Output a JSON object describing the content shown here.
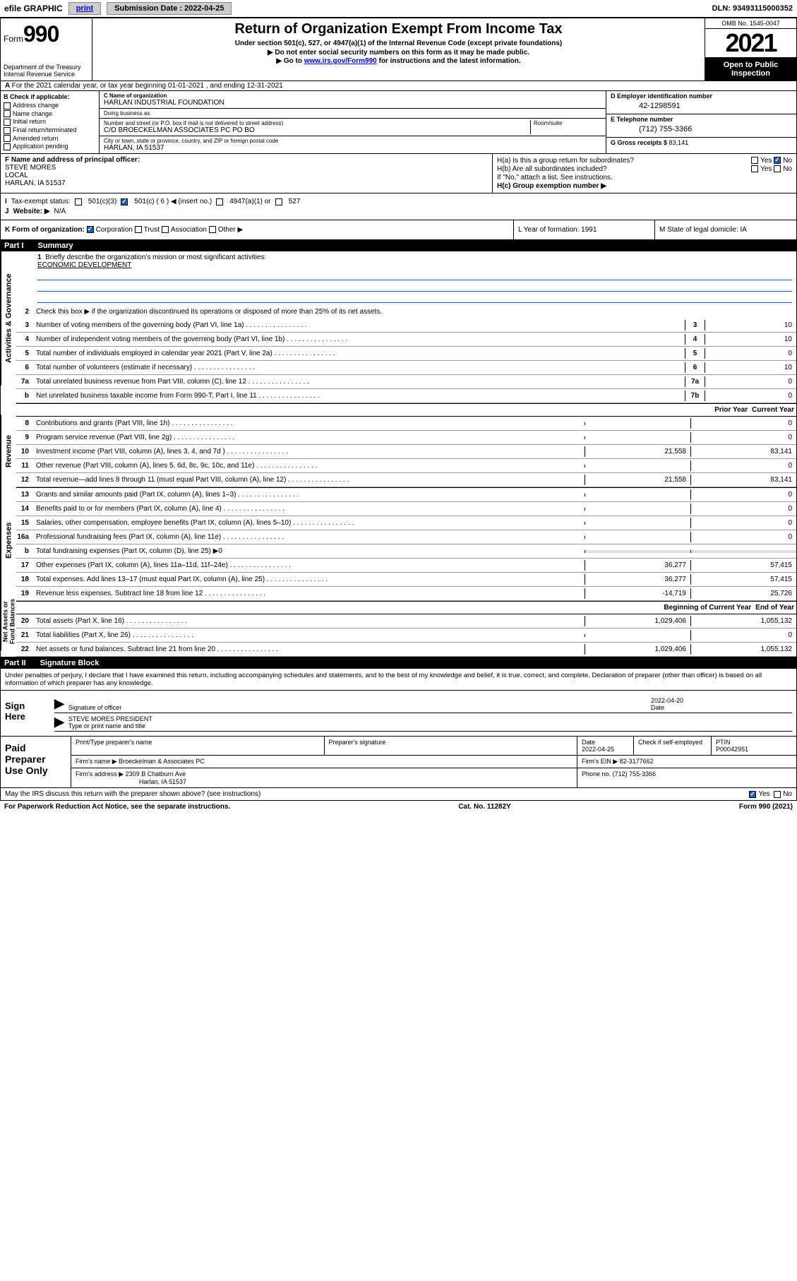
{
  "top": {
    "efile_left": "efile GRAPHIC",
    "print": "print",
    "sub_label": "Submission Date : ",
    "sub_date": "2022-04-25",
    "dln": "DLN: 93493115000352"
  },
  "header": {
    "form_word": "Form",
    "form_num": "990",
    "dept": "Department of the Treasury Internal Revenue Service",
    "title": "Return of Organization Exempt From Income Tax",
    "sub": "Under section 501(c), 527, or 4947(a)(1) of the Internal Revenue Code (except private foundations)",
    "line1": "Do not enter social security numbers on this form as it may be made public.",
    "line2_pre": "Go to ",
    "line2_link": "www.irs.gov/Form990",
    "line2_post": " for instructions and the latest information.",
    "omb": "OMB No. 1545-0047",
    "year": "2021",
    "open": "Open to Public Inspection"
  },
  "rowA": "For the 2021 calendar year, or tax year beginning 01-01-2021  , and ending 12-31-2021",
  "B": {
    "hdr": "B Check if applicable:",
    "opts": [
      "Address change",
      "Name change",
      "Initial return",
      "Final return/terminated",
      "Amended return",
      "Application pending"
    ]
  },
  "C": {
    "name_lbl": "C Name of organization",
    "name": "HARLAN INDUSTRIAL FOUNDATION",
    "dba_lbl": "Doing business as",
    "dba": "",
    "addr_lbl": "Number and street (or P.O. box if mail is not delivered to street address)",
    "addr": "C/O BROECKELMAN ASSOCIATES PC PO BO",
    "room_lbl": "Room/suite",
    "city_lbl": "City or town, state or province, country, and ZIP or foreign postal code",
    "city": "HARLAN, IA  51537"
  },
  "D": {
    "ein_lbl": "D Employer identification number",
    "ein": "42-1298591",
    "tel_lbl": "E Telephone number",
    "tel": "(712) 755-3366",
    "gross_lbl": "G Gross receipts $ ",
    "gross": "83,141"
  },
  "F": {
    "lbl": "F Name and address of principal officer:",
    "name": "STEVE MORES",
    "addr1": "LOCAL",
    "addr2": "HARLAN, IA  51537"
  },
  "H": {
    "a": "H(a)  Is this a group return for subordinates?",
    "b": "H(b)  Are all subordinates included?",
    "b2": "If \"No,\" attach a list. See instructions.",
    "c": "H(c)  Group exemption number ▶"
  },
  "I": {
    "lbl": "Tax-exempt status:",
    "o1": "501(c)(3)",
    "o2": "501(c) ( 6 ) ◀ (insert no.)",
    "o3": "4947(a)(1) or",
    "o4": "527"
  },
  "J": {
    "lbl": "Website: ▶",
    "val": "N/A"
  },
  "K": {
    "lbl": "K Form of organization:",
    "corp": "Corporation",
    "trust": "Trust",
    "assoc": "Association",
    "other": "Other ▶",
    "L": "L Year of formation: 1991",
    "M": "M State of legal domicile: IA"
  },
  "part1": {
    "num": "Part I",
    "title": "Summary"
  },
  "summary": {
    "l1": "Briefly describe the organization's mission or most significant activities:",
    "mission": "ECONOMIC DEVELOPMENT",
    "l2": "Check this box ▶        if the organization discontinued its operations or disposed of more than 25% of its net assets.",
    "rows_gov": [
      {
        "n": "3",
        "t": "Number of voting members of the governing body (Part VI, line 1a)",
        "bn": "3",
        "v": "10"
      },
      {
        "n": "4",
        "t": "Number of independent voting members of the governing body (Part VI, line 1b)",
        "bn": "4",
        "v": "10"
      },
      {
        "n": "5",
        "t": "Total number of individuals employed in calendar year 2021 (Part V, line 2a)",
        "bn": "5",
        "v": "0"
      },
      {
        "n": "6",
        "t": "Total number of volunteers (estimate if necessary)",
        "bn": "6",
        "v": "10"
      },
      {
        "n": "7a",
        "t": "Total unrelated business revenue from Part VIII, column (C), line 12",
        "bn": "7a",
        "v": "0"
      },
      {
        "n": "b",
        "t": "Net unrelated business taxable income from Form 990-T, Part I, line 11",
        "bn": "7b",
        "v": "0"
      }
    ],
    "hdr_prior": "Prior Year",
    "hdr_curr": "Current Year",
    "rows_rev": [
      {
        "n": "8",
        "t": "Contributions and grants (Part VIII, line 1h)",
        "p": "",
        "c": "0"
      },
      {
        "n": "9",
        "t": "Program service revenue (Part VIII, line 2g)",
        "p": "",
        "c": "0"
      },
      {
        "n": "10",
        "t": "Investment income (Part VIII, column (A), lines 3, 4, and 7d )",
        "p": "21,558",
        "c": "83,141"
      },
      {
        "n": "11",
        "t": "Other revenue (Part VIII, column (A), lines 5, 6d, 8c, 9c, 10c, and 11e)",
        "p": "",
        "c": "0"
      },
      {
        "n": "12",
        "t": "Total revenue—add lines 8 through 11 (must equal Part VIII, column (A), line 12)",
        "p": "21,558",
        "c": "83,141"
      }
    ],
    "rows_exp": [
      {
        "n": "13",
        "t": "Grants and similar amounts paid (Part IX, column (A), lines 1–3)",
        "p": "",
        "c": "0"
      },
      {
        "n": "14",
        "t": "Benefits paid to or for members (Part IX, column (A), line 4)",
        "p": "",
        "c": "0"
      },
      {
        "n": "15",
        "t": "Salaries, other compensation, employee benefits (Part IX, column (A), lines 5–10)",
        "p": "",
        "c": "0"
      },
      {
        "n": "16a",
        "t": "Professional fundraising fees (Part IX, column (A), line 11e)",
        "p": "",
        "c": "0"
      }
    ],
    "l16b": "Total fundraising expenses (Part IX, column (D), line 25) ▶0",
    "rows_exp2": [
      {
        "n": "17",
        "t": "Other expenses (Part IX, column (A), lines 11a–11d, 11f–24e)",
        "p": "36,277",
        "c": "57,415"
      },
      {
        "n": "18",
        "t": "Total expenses. Add lines 13–17 (must equal Part IX, column (A), line 25)",
        "p": "36,277",
        "c": "57,415"
      },
      {
        "n": "19",
        "t": "Revenue less expenses. Subtract line 18 from line 12",
        "p": "-14,719",
        "c": "25,726"
      }
    ],
    "hdr_begin": "Beginning of Current Year",
    "hdr_end": "End of Year",
    "rows_net": [
      {
        "n": "20",
        "t": "Total assets (Part X, line 16)",
        "p": "1,029,406",
        "c": "1,055,132"
      },
      {
        "n": "21",
        "t": "Total liabilities (Part X, line 26)",
        "p": "",
        "c": "0"
      },
      {
        "n": "22",
        "t": "Net assets or fund balances. Subtract line 21 from line 20",
        "p": "1,029,406",
        "c": "1,055,132"
      }
    ]
  },
  "part2": {
    "num": "Part II",
    "title": "Signature Block"
  },
  "sig": {
    "intro": "Under penalties of perjury, I declare that I have examined this return, including accompanying schedules and statements, and to the best of my knowledge and belief, it is true, correct, and complete. Declaration of preparer (other than officer) is based on all information of which preparer has any knowledge.",
    "here": "Sign Here",
    "sig_lbl": "Signature of officer",
    "date_lbl": "Date",
    "date": "2022-04-20",
    "name": "STEVE MORES PRESIDENT",
    "name_lbl": "Type or print name and title"
  },
  "prep": {
    "title": "Paid Preparer Use Only",
    "r1": {
      "c1": "Print/Type preparer's name",
      "c2": "Preparer's signature",
      "c3": "Date",
      "c3v": "2022-04-25",
      "c4": "Check        if self-employed",
      "c5": "PTIN",
      "c5v": "P00042951"
    },
    "r2": {
      "lbl": "Firm's name    ▶",
      "val": "Broeckelman & Associates PC",
      "ein_lbl": "Firm's EIN ▶",
      "ein": "82-3177662"
    },
    "r3": {
      "lbl": "Firm's address ▶",
      "val1": "2309 B Chatburn Ave",
      "val2": "Harlan, IA  51537",
      "ph_lbl": "Phone no.",
      "ph": "(712) 755-3366"
    }
  },
  "footer": {
    "q": "May the IRS discuss this return with the preparer shown above? (see instructions)",
    "yes": "Yes",
    "no": "No",
    "pra": "For Paperwork Reduction Act Notice, see the separate instructions.",
    "cat": "Cat. No. 11282Y",
    "form": "Form 990 (2021)"
  }
}
